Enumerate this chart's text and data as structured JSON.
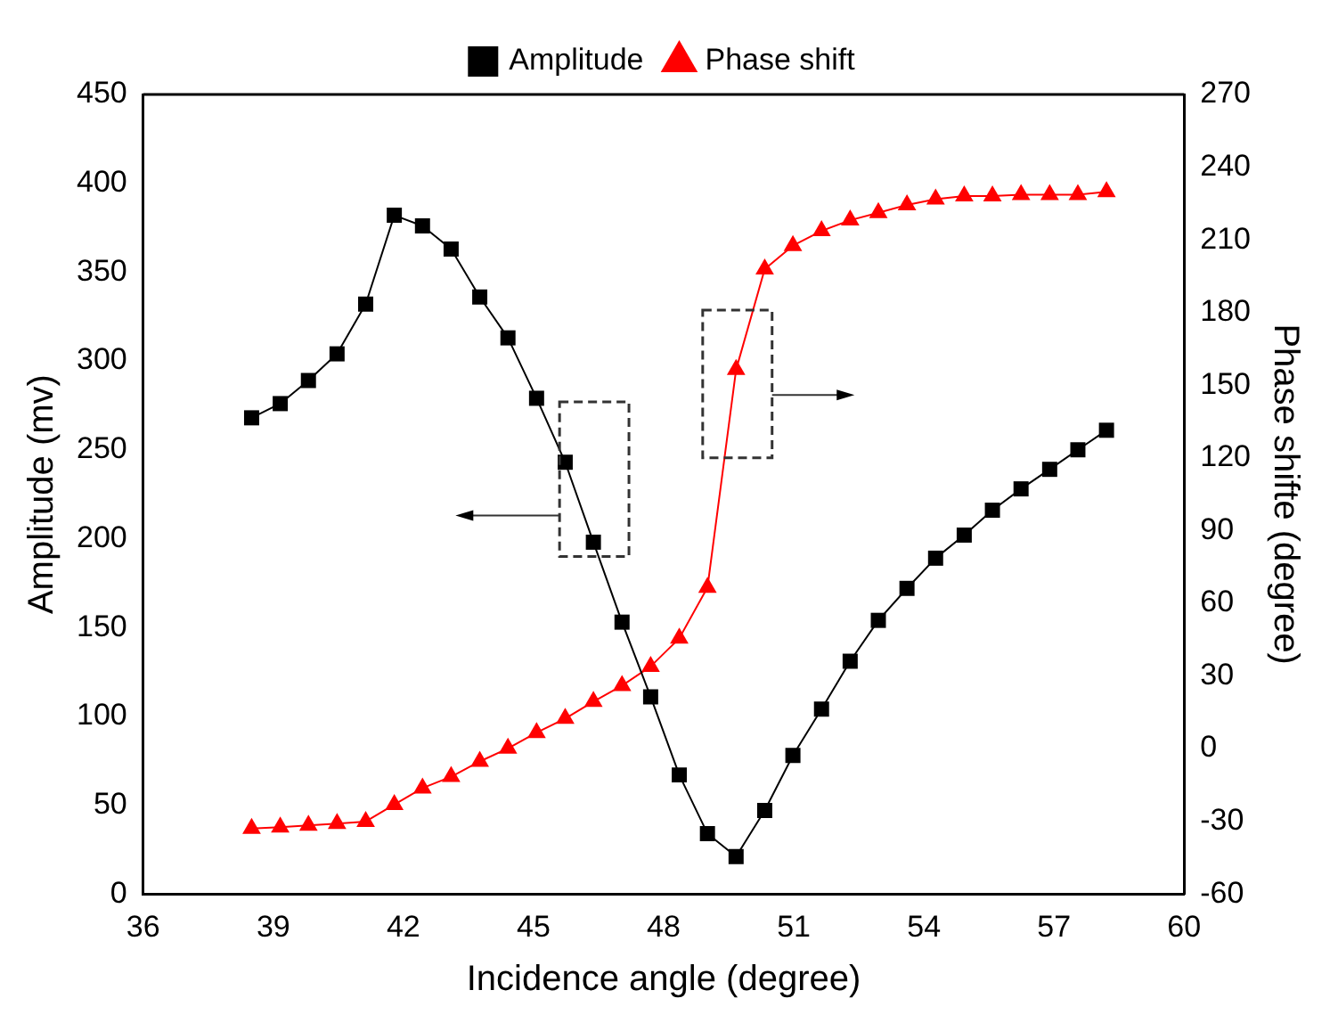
{
  "chart_data": {
    "type": "line",
    "xlabel": "Incidence angle (degree)",
    "ylabel": "Amplitude (mv)",
    "y2label": "Phase shifte (degree)",
    "x": [
      38.5,
      39.16,
      39.81,
      40.47,
      41.13,
      41.79,
      42.44,
      43.1,
      43.76,
      44.41,
      45.07,
      45.73,
      46.38,
      47.04,
      47.7,
      48.36,
      49.01,
      49.67,
      50.33,
      50.98,
      51.64,
      52.3,
      52.95,
      53.61,
      54.27,
      54.93,
      55.58,
      56.24,
      56.9,
      57.55,
      58.21
    ],
    "series": [
      {
        "name": "Amplitude",
        "color": "#000000",
        "marker": "square",
        "values": [
          268,
          276,
          289,
          304,
          332,
          382,
          376,
          363,
          336,
          313,
          279,
          243,
          198,
          153,
          111,
          67,
          34,
          21,
          47,
          78,
          104,
          131,
          154,
          172,
          189,
          202,
          216,
          228,
          239,
          250,
          261
        ]
      },
      {
        "name": "Phase shift",
        "color": "#ff0000",
        "marker": "triangle",
        "axis": "y2",
        "values": [
          -33,
          -32.4,
          -31.7,
          -31,
          -30.1,
          -23.1,
          -16.3,
          -11.6,
          -5.3,
          0.1,
          6.6,
          12.4,
          19.4,
          26,
          33.9,
          45.5,
          66.5,
          156.4,
          197.9,
          207.6,
          213.7,
          218.1,
          221.2,
          224.4,
          226.8,
          228.1,
          228.1,
          228.6,
          228.6,
          228.6,
          229.8
        ]
      }
    ],
    "xlim": [
      36,
      60
    ],
    "xticks": [
      36,
      39,
      42,
      45,
      48,
      51,
      54,
      57,
      60
    ],
    "ylim": [
      0,
      450
    ],
    "yticks": [
      0,
      50,
      100,
      150,
      200,
      250,
      300,
      350,
      400,
      450
    ],
    "y2lim": [
      -60,
      270
    ],
    "y2ticks": [
      -60,
      -30,
      0,
      30,
      60,
      90,
      120,
      150,
      180,
      210,
      240,
      270
    ],
    "legend": "top",
    "grid": false
  }
}
